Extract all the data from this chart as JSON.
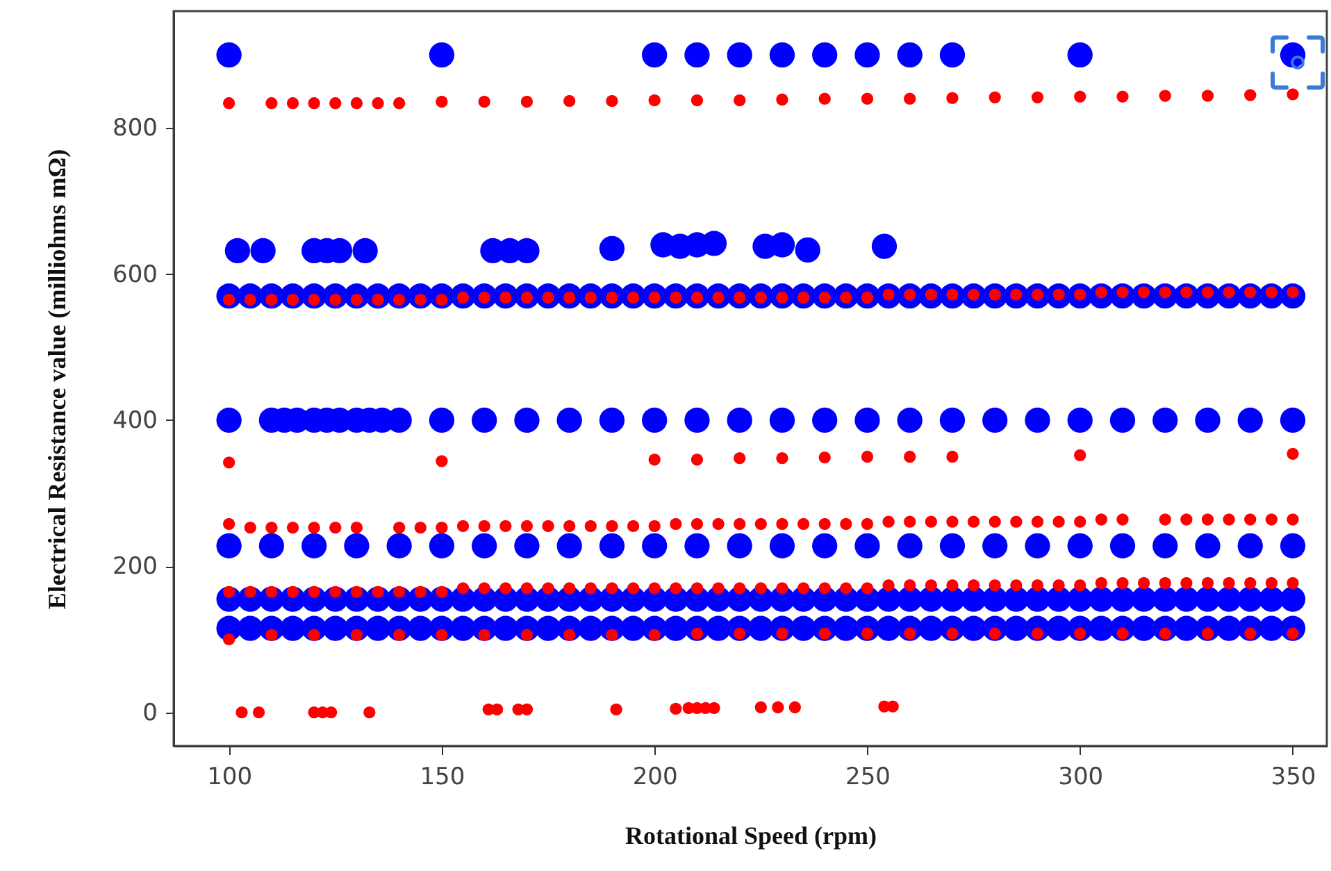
{
  "chart_data": {
    "type": "scatter",
    "xlabel": "Rotational Speed (rpm)",
    "ylabel": "Electrical Resistance value (milliohms mΩ)",
    "xlim": [
      87,
      358
    ],
    "ylim": [
      -46,
      960
    ],
    "xticks": [
      100,
      150,
      200,
      250,
      300,
      350
    ],
    "yticks": [
      0,
      200,
      400,
      600,
      800
    ],
    "grid": false,
    "marker": "circle",
    "series": [
      {
        "color": "#0000ff",
        "x": [
          100,
          150,
          200,
          210,
          220,
          230,
          240,
          250,
          260,
          270,
          300,
          350,
          102,
          108,
          120,
          123,
          126,
          132,
          162,
          166,
          170,
          190,
          202,
          206,
          210,
          214,
          226,
          230,
          236,
          254,
          100,
          110,
          113,
          116,
          120,
          123,
          126,
          130,
          133,
          136,
          140,
          150,
          160,
          170,
          180,
          190,
          200,
          210,
          220,
          230,
          240,
          250,
          260,
          270,
          280,
          290,
          300,
          310,
          320,
          330,
          340,
          350,
          100,
          110,
          120,
          130,
          140,
          150,
          160,
          170,
          180,
          190,
          200,
          210,
          220,
          230,
          240,
          250,
          260,
          270,
          280,
          290,
          300,
          310,
          320,
          330,
          340,
          350,
          100,
          105,
          110,
          115,
          120,
          125,
          130,
          135,
          140,
          145,
          150,
          155,
          160,
          165,
          170,
          175,
          180,
          185,
          190,
          195,
          200,
          205,
          210,
          215,
          220,
          225,
          230,
          235,
          240,
          245,
          250,
          255,
          260,
          265,
          270,
          275,
          280,
          285,
          290,
          295,
          300,
          305,
          310,
          315,
          320,
          325,
          330,
          335,
          340,
          345,
          350,
          100,
          105,
          110,
          115,
          120,
          125,
          130,
          135,
          140,
          145,
          150,
          155,
          160,
          165,
          170,
          175,
          180,
          185,
          190,
          195,
          200,
          205,
          210,
          215,
          220,
          225,
          230,
          235,
          240,
          245,
          250,
          255,
          260,
          265,
          270,
          275,
          280,
          285,
          290,
          295,
          300,
          305,
          310,
          315,
          320,
          325,
          330,
          335,
          340,
          345,
          350,
          100,
          105,
          110,
          115,
          120,
          125,
          130,
          135,
          140,
          145,
          150,
          155,
          160,
          165,
          170,
          175,
          180,
          185,
          190,
          195,
          200,
          205,
          210,
          215,
          220,
          225,
          230,
          235,
          240,
          245,
          250,
          255,
          260,
          265,
          270,
          275,
          280,
          285,
          290,
          295,
          300,
          305,
          310,
          315,
          320,
          325,
          330,
          335,
          340,
          345,
          350
        ],
        "values": [
          900,
          900,
          900,
          900,
          900,
          900,
          900,
          900,
          900,
          900,
          900,
          900,
          632,
          632,
          632,
          632,
          632,
          632,
          632,
          632,
          632,
          635,
          640,
          638,
          640,
          642,
          638,
          640,
          633,
          638,
          400,
          400,
          400,
          400,
          400,
          400,
          400,
          400,
          400,
          400,
          400,
          400,
          400,
          400,
          400,
          400,
          400,
          400,
          400,
          400,
          400,
          400,
          400,
          400,
          400,
          400,
          400,
          400,
          400,
          400,
          400,
          400,
          228,
          228,
          228,
          228,
          228,
          228,
          228,
          228,
          228,
          228,
          228,
          228,
          228,
          228,
          228,
          228,
          228,
          228,
          228,
          228,
          228,
          228,
          228,
          228,
          228,
          228,
          570,
          570,
          570,
          570,
          570,
          570,
          570,
          570,
          570,
          570,
          570,
          570,
          570,
          570,
          570,
          570,
          570,
          570,
          570,
          570,
          570,
          570,
          570,
          570,
          570,
          570,
          570,
          570,
          570,
          570,
          570,
          570,
          570,
          570,
          570,
          570,
          570,
          570,
          570,
          570,
          570,
          570,
          570,
          570,
          570,
          570,
          570,
          570,
          570,
          570,
          570,
          155,
          155,
          155,
          155,
          155,
          155,
          155,
          155,
          155,
          155,
          155,
          155,
          155,
          155,
          155,
          155,
          155,
          155,
          155,
          155,
          155,
          155,
          155,
          155,
          155,
          155,
          155,
          155,
          155,
          155,
          155,
          155,
          155,
          155,
          155,
          155,
          155,
          155,
          155,
          155,
          155,
          155,
          155,
          155,
          155,
          155,
          155,
          155,
          155,
          155,
          155,
          115,
          115,
          115,
          115,
          115,
          115,
          115,
          115,
          115,
          115,
          115,
          115,
          115,
          115,
          115,
          115,
          115,
          115,
          115,
          115,
          115,
          115,
          115,
          115,
          115,
          115,
          115,
          115,
          115,
          115,
          115,
          115,
          115,
          115,
          115,
          115,
          115,
          115,
          115,
          115,
          115,
          115,
          115,
          115,
          115,
          115,
          115,
          115,
          115,
          115,
          115
        ]
      },
      {
        "color": "#ff0000",
        "x": [
          100,
          110,
          115,
          120,
          125,
          130,
          135,
          140,
          150,
          160,
          170,
          180,
          190,
          200,
          210,
          220,
          230,
          240,
          250,
          260,
          270,
          280,
          290,
          300,
          310,
          320,
          330,
          340,
          350,
          100,
          150,
          200,
          210,
          220,
          230,
          240,
          250,
          260,
          270,
          300,
          350,
          100,
          105,
          110,
          115,
          120,
          125,
          130,
          140,
          145,
          150,
          155,
          160,
          165,
          170,
          175,
          180,
          185,
          190,
          195,
          200,
          205,
          210,
          215,
          220,
          225,
          230,
          235,
          240,
          245,
          250,
          255,
          260,
          265,
          270,
          275,
          280,
          285,
          290,
          295,
          300,
          305,
          310,
          320,
          325,
          330,
          335,
          340,
          345,
          350,
          100,
          105,
          110,
          115,
          120,
          125,
          130,
          135,
          140,
          145,
          150,
          155,
          160,
          165,
          170,
          175,
          180,
          185,
          190,
          195,
          200,
          205,
          210,
          215,
          220,
          225,
          230,
          235,
          240,
          245,
          250,
          255,
          260,
          265,
          270,
          275,
          280,
          285,
          290,
          295,
          300,
          305,
          310,
          315,
          320,
          325,
          330,
          335,
          340,
          345,
          350,
          100,
          105,
          110,
          115,
          120,
          125,
          130,
          135,
          140,
          145,
          150,
          155,
          160,
          165,
          170,
          175,
          180,
          185,
          190,
          195,
          200,
          205,
          210,
          215,
          220,
          225,
          230,
          235,
          240,
          245,
          250,
          255,
          260,
          265,
          270,
          275,
          280,
          285,
          290,
          295,
          300,
          305,
          310,
          315,
          320,
          325,
          330,
          335,
          340,
          345,
          350,
          100,
          110,
          120,
          130,
          140,
          150,
          160,
          170,
          180,
          190,
          200,
          210,
          220,
          230,
          240,
          250,
          260,
          270,
          280,
          290,
          300,
          310,
          320,
          330,
          340,
          350,
          103,
          107,
          120,
          122,
          124,
          133,
          161,
          163,
          168,
          170,
          191,
          205,
          208,
          210,
          212,
          214,
          225,
          229,
          233,
          254,
          256
        ],
        "values": [
          834,
          834,
          834,
          834,
          834,
          834,
          834,
          834,
          836,
          836,
          836,
          837,
          837,
          838,
          838,
          838,
          839,
          840,
          840,
          840,
          841,
          842,
          842,
          843,
          843,
          844,
          844,
          845,
          846,
          342,
          344,
          346,
          346,
          348,
          348,
          349,
          350,
          350,
          350,
          352,
          354,
          258,
          253,
          253,
          253,
          253,
          253,
          253,
          253,
          253,
          253,
          255,
          255,
          255,
          255,
          255,
          255,
          255,
          255,
          255,
          255,
          258,
          258,
          258,
          258,
          258,
          258,
          258,
          258,
          258,
          258,
          261,
          261,
          261,
          261,
          261,
          261,
          261,
          261,
          261,
          261,
          264,
          264,
          264,
          264,
          264,
          264,
          264,
          264,
          264,
          565,
          565,
          565,
          565,
          565,
          565,
          565,
          565,
          565,
          565,
          565,
          568,
          568,
          568,
          568,
          568,
          568,
          568,
          568,
          568,
          568,
          568,
          568,
          568,
          568,
          568,
          568,
          568,
          568,
          568,
          568,
          572,
          572,
          572,
          572,
          572,
          572,
          572,
          572,
          572,
          572,
          575,
          575,
          575,
          575,
          575,
          575,
          575,
          575,
          575,
          575,
          165,
          165,
          165,
          165,
          165,
          165,
          165,
          165,
          165,
          165,
          165,
          170,
          170,
          170,
          170,
          170,
          170,
          170,
          170,
          170,
          170,
          170,
          170,
          170,
          170,
          170,
          170,
          170,
          170,
          170,
          170,
          174,
          174,
          174,
          174,
          174,
          174,
          174,
          174,
          174,
          174,
          177,
          177,
          177,
          177,
          177,
          177,
          177,
          177,
          177,
          177,
          100,
          106,
          106,
          106,
          106,
          106,
          106,
          106,
          106,
          106,
          106,
          108,
          108,
          108,
          108,
          108,
          108,
          108,
          108,
          108,
          108,
          108,
          108,
          108,
          108,
          108,
          0,
          0,
          0,
          0,
          0,
          0,
          4,
          4,
          4,
          4,
          4,
          5,
          6,
          6,
          6,
          6,
          7,
          7,
          7,
          8,
          8
        ]
      }
    ]
  }
}
